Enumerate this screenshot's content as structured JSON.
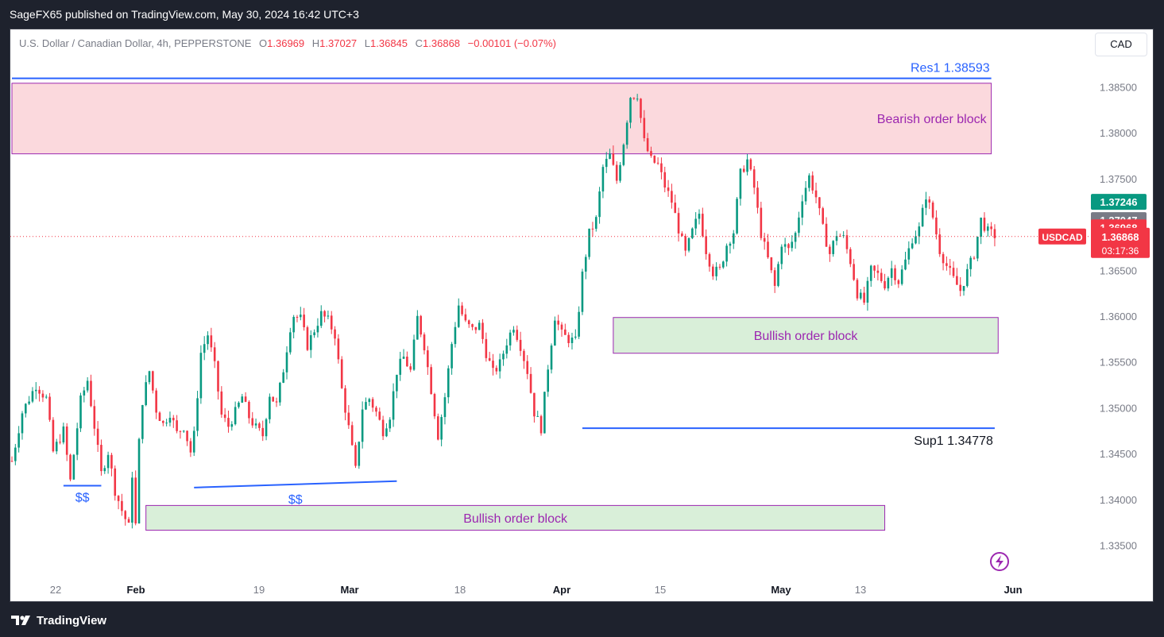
{
  "header": {
    "published": "SageFX65 published on TradingView.com, May 30, 2024 16:42 UTC+3"
  },
  "legend": {
    "instrument": "U.S. Dollar / Canadian Dollar, 4h, PEPPERSTONE",
    "o_label": "O",
    "o_value": "1.36969",
    "h_label": "H",
    "h_value": "1.37027",
    "l_label": "L",
    "l_value": "1.36845",
    "c_label": "C",
    "c_value": "1.36868",
    "change": "−0.00101 (−0.07%)"
  },
  "currency_button": "CAD",
  "footer": {
    "brand": "TradingView"
  },
  "colors": {
    "up": "#089981",
    "down": "#f23645",
    "bearish_zone": "#fbd9dd",
    "bullish_zone": "#d9efd9",
    "zone_border": "#9c27b0",
    "level_line": "#2962ff",
    "background": "#1e222d"
  },
  "chart_data": {
    "type": "candlestick",
    "symbol": "USDCAD",
    "timeframe": "4h",
    "ylim": [
      1.3315,
      1.3885
    ],
    "y_ticks": [
      "1.38500",
      "1.38000",
      "1.37500",
      "1.37000",
      "1.36500",
      "1.36000",
      "1.35500",
      "1.35000",
      "1.34500",
      "1.34000",
      "1.33500"
    ],
    "x_tick_labels": [
      {
        "label": "22",
        "bold": false
      },
      {
        "label": "Feb",
        "bold": true
      },
      {
        "label": "19",
        "bold": false
      },
      {
        "label": "Mar",
        "bold": true
      },
      {
        "label": "18",
        "bold": false
      },
      {
        "label": "Apr",
        "bold": true
      },
      {
        "label": "15",
        "bold": false
      },
      {
        "label": "May",
        "bold": true
      },
      {
        "label": "13",
        "bold": false
      },
      {
        "label": "Jun",
        "bold": true
      }
    ],
    "price_path": [
      [
        0,
        1.3442
      ],
      [
        3,
        1.3495
      ],
      [
        7,
        1.3525
      ],
      [
        10,
        1.351
      ],
      [
        12,
        1.3452
      ],
      [
        15,
        1.3475
      ],
      [
        17,
        1.342
      ],
      [
        20,
        1.3508
      ],
      [
        22,
        1.353
      ],
      [
        24,
        1.348
      ],
      [
        26,
        1.3428
      ],
      [
        28,
        1.3452
      ],
      [
        30,
        1.341
      ],
      [
        32,
        1.3388
      ],
      [
        34,
        1.337
      ],
      [
        35,
        1.3428
      ],
      [
        36,
        1.3372
      ],
      [
        37,
        1.3462
      ],
      [
        38,
        1.3508
      ],
      [
        40,
        1.354
      ],
      [
        42,
        1.3498
      ],
      [
        44,
        1.3482
      ],
      [
        46,
        1.3495
      ],
      [
        48,
        1.3472
      ],
      [
        50,
        1.348
      ],
      [
        52,
        1.3452
      ],
      [
        53,
        1.347
      ],
      [
        55,
        1.356
      ],
      [
        57,
        1.358
      ],
      [
        59,
        1.3545
      ],
      [
        61,
        1.3492
      ],
      [
        63,
        1.348
      ],
      [
        65,
        1.3495
      ],
      [
        67,
        1.3512
      ],
      [
        69,
        1.349
      ],
      [
        71,
        1.3478
      ],
      [
        73,
        1.347
      ],
      [
        75,
        1.3515
      ],
      [
        77,
        1.3503
      ],
      [
        79,
        1.3542
      ],
      [
        81,
        1.3588
      ],
      [
        82,
        1.3601
      ],
      [
        84,
        1.3597
      ],
      [
        86,
        1.3568
      ],
      [
        88,
        1.3585
      ],
      [
        90,
        1.3602
      ],
      [
        92,
        1.3595
      ],
      [
        94,
        1.358
      ],
      [
        96,
        1.352
      ],
      [
        98,
        1.3478
      ],
      [
        100,
        1.3432
      ],
      [
        102,
        1.35
      ],
      [
        104,
        1.351
      ],
      [
        106,
        1.3495
      ],
      [
        108,
        1.3475
      ],
      [
        110,
        1.3492
      ],
      [
        112,
        1.354
      ],
      [
        114,
        1.3555
      ],
      [
        116,
        1.354
      ],
      [
        118,
        1.3598
      ],
      [
        120,
        1.3568
      ],
      [
        122,
        1.352
      ],
      [
        124,
        1.347
      ],
      [
        126,
        1.3512
      ],
      [
        128,
        1.357
      ],
      [
        130,
        1.3612
      ],
      [
        132,
        1.3592
      ],
      [
        134,
        1.3585
      ],
      [
        136,
        1.359
      ],
      [
        138,
        1.356
      ],
      [
        140,
        1.3538
      ],
      [
        142,
        1.3548
      ],
      [
        144,
        1.3572
      ],
      [
        146,
        1.359
      ],
      [
        148,
        1.3568
      ],
      [
        150,
        1.354
      ],
      [
        152,
        1.3495
      ],
      [
        154,
        1.3478
      ],
      [
        156,
        1.3545
      ],
      [
        158,
        1.36
      ],
      [
        160,
        1.358
      ],
      [
        162,
        1.3575
      ],
      [
        164,
        1.3572
      ],
      [
        166,
        1.3645
      ],
      [
        168,
        1.369
      ],
      [
        170,
        1.3705
      ],
      [
        172,
        1.3762
      ],
      [
        174,
        1.3775
      ],
      [
        176,
        1.3748
      ],
      [
        178,
        1.379
      ],
      [
        180,
        1.384
      ],
      [
        182,
        1.3842
      ],
      [
        184,
        1.379
      ],
      [
        186,
        1.377
      ],
      [
        188,
        1.3765
      ],
      [
        190,
        1.3742
      ],
      [
        192,
        1.3725
      ],
      [
        194,
        1.3695
      ],
      [
        196,
        1.3668
      ],
      [
        198,
        1.3692
      ],
      [
        200,
        1.3712
      ],
      [
        202,
        1.3672
      ],
      [
        204,
        1.3648
      ],
      [
        206,
        1.365
      ],
      [
        208,
        1.3678
      ],
      [
        210,
        1.3692
      ],
      [
        212,
        1.3755
      ],
      [
        214,
        1.377
      ],
      [
        216,
        1.374
      ],
      [
        218,
        1.369
      ],
      [
        220,
        1.3662
      ],
      [
        222,
        1.3632
      ],
      [
        224,
        1.368
      ],
      [
        226,
        1.3672
      ],
      [
        228,
        1.369
      ],
      [
        230,
        1.373
      ],
      [
        232,
        1.3752
      ],
      [
        234,
        1.373
      ],
      [
        236,
        1.3695
      ],
      [
        238,
        1.3668
      ],
      [
        240,
        1.369
      ],
      [
        242,
        1.3685
      ],
      [
        244,
        1.366
      ],
      [
        246,
        1.3625
      ],
      [
        248,
        1.3615
      ],
      [
        250,
        1.365
      ],
      [
        252,
        1.3645
      ],
      [
        254,
        1.3635
      ],
      [
        256,
        1.3652
      ],
      [
        258,
        1.3638
      ],
      [
        260,
        1.366
      ],
      [
        262,
        1.3685
      ],
      [
        264,
        1.3695
      ],
      [
        266,
        1.3732
      ],
      [
        268,
        1.3708
      ],
      [
        270,
        1.3672
      ],
      [
        272,
        1.3655
      ],
      [
        274,
        1.364
      ],
      [
        276,
        1.3628
      ],
      [
        278,
        1.3648
      ],
      [
        280,
        1.3668
      ],
      [
        282,
        1.3705
      ],
      [
        284,
        1.3692
      ],
      [
        286,
        1.3688
      ]
    ],
    "zones": [
      {
        "label": "Bearish order block",
        "kind": "bearish",
        "top": 1.3854,
        "bottom": 1.3777,
        "x_start": 0,
        "x_end": 285
      },
      {
        "label": "Bullish order block",
        "kind": "bullish",
        "top": 1.35985,
        "bottom": 1.35595,
        "x_start": 175,
        "x_end": 287
      },
      {
        "label": "Bullish order block",
        "kind": "bullish",
        "top": 1.33935,
        "bottom": 1.33665,
        "x_start": 39,
        "x_end": 254
      }
    ],
    "levels": [
      {
        "label": "Res1 1.38593",
        "price": 1.38593,
        "x_start": 0,
        "x_end": 285
      },
      {
        "label": "Sup1 1.34778",
        "price": 1.34778,
        "x_start": 166,
        "x_end": 286
      }
    ],
    "liquidity": [
      {
        "label": "$$",
        "from": [
          15,
          1.3415
        ],
        "to": [
          26,
          1.3415
        ]
      },
      {
        "label": "$$",
        "from": [
          53,
          1.3413
        ],
        "to": [
          112,
          1.342
        ]
      }
    ],
    "price_tags": [
      {
        "text": "1.37246",
        "price": 1.37246,
        "color": "#089981"
      },
      {
        "text": "1.37047",
        "price": 1.37047,
        "color": "#787b86"
      },
      {
        "text": "1.36968",
        "price": 1.36968,
        "color": "#f23645"
      }
    ],
    "current_price": {
      "symbol_label": "USDCAD",
      "price_text": "1.36868",
      "price": 1.36868,
      "countdown": "03:17:36",
      "color": "#f23645"
    }
  }
}
